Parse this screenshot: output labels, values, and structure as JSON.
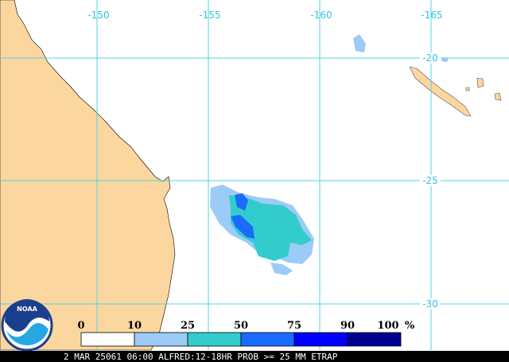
{
  "map": {
    "lon_labels": [
      "-150",
      "-155",
      "-160",
      "-165"
    ],
    "lat_labels": [
      "-20",
      "-25",
      "-30"
    ]
  },
  "logo": "NOAA",
  "legend": {
    "labels": [
      "0",
      "10",
      "25",
      "50",
      "75",
      "90",
      "100"
    ],
    "unit": "%",
    "colors": [
      "#ffffff",
      "#9ccbf7",
      "#33cccc",
      "#1a6bff",
      "#0000ff",
      "#00008f"
    ]
  },
  "footer": "2 MAR 25061 06:00 ALFRED:12-18HR PROB >= 25 MM ETRAP"
}
